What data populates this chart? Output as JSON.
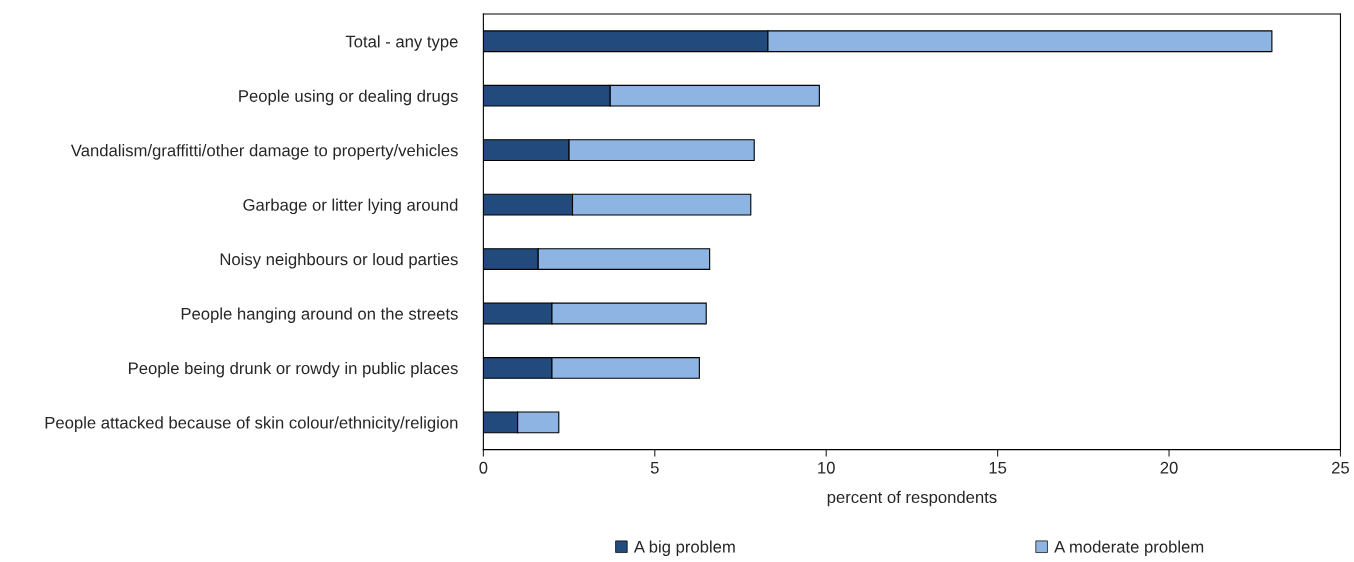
{
  "chart_data": {
    "type": "bar",
    "orientation": "horizontal",
    "stacked": true,
    "categories": [
      "Total - any type",
      "People using or dealing drugs",
      "Vandalism/graffitti/other damage to property/vehicles",
      "Garbage or litter lying around",
      "Noisy neighbours or loud parties",
      "People hanging around on the streets",
      "People being drunk or rowdy in public places",
      "People attacked because of skin colour/ethnicity/religion"
    ],
    "series": [
      {
        "name": "A big problem",
        "color": "#234a7c",
        "values": [
          8.3,
          3.7,
          2.5,
          2.6,
          1.6,
          2.0,
          2.0,
          1.0
        ]
      },
      {
        "name": "A moderate problem",
        "color": "#8db4e2",
        "values": [
          14.7,
          6.1,
          5.4,
          5.2,
          5.0,
          4.5,
          4.3,
          1.2
        ]
      }
    ],
    "xlabel": "percent of respondents",
    "xlim": [
      0,
      25
    ],
    "xticks": [
      0,
      5,
      10,
      15,
      20,
      25
    ],
    "grid": false,
    "legend": "bottom"
  }
}
